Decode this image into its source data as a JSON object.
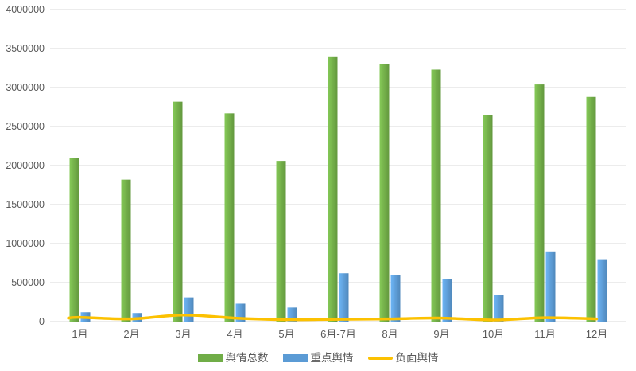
{
  "chart_data": {
    "type": "bar",
    "title": "",
    "xlabel": "",
    "ylabel": "",
    "categories": [
      "1月",
      "2月",
      "3月",
      "4月",
      "5月",
      "6月-7月",
      "8月",
      "9月",
      "10月",
      "11月",
      "12月"
    ],
    "series": [
      {
        "name": "舆情总数",
        "type": "bar",
        "color": "#70ad47",
        "values": [
          2100000,
          1820000,
          2820000,
          2670000,
          2060000,
          3400000,
          3300000,
          3230000,
          2650000,
          3040000,
          2880000
        ]
      },
      {
        "name": "重点舆情",
        "type": "bar",
        "color": "#5b9bd5",
        "values": [
          120000,
          110000,
          310000,
          230000,
          180000,
          620000,
          600000,
          550000,
          340000,
          900000,
          800000
        ]
      },
      {
        "name": "负面舆情",
        "type": "line",
        "color": "#fcc101",
        "values": [
          55000,
          35000,
          85000,
          45000,
          25000,
          30000,
          35000,
          45000,
          20000,
          50000,
          35000
        ]
      }
    ],
    "ylim": [
      0,
      4000000
    ],
    "ytick_interval": 500000,
    "ytick_labels": [
      "4000000",
      "3500000",
      "3000000",
      "2500000",
      "2000000",
      "1500000",
      "1000000",
      "500000",
      "0"
    ],
    "grid": true,
    "legend_position": "bottom",
    "gridline_color": "#d9d9d9",
    "axis_text_color": "#595959",
    "background_color": "#ffffff"
  }
}
